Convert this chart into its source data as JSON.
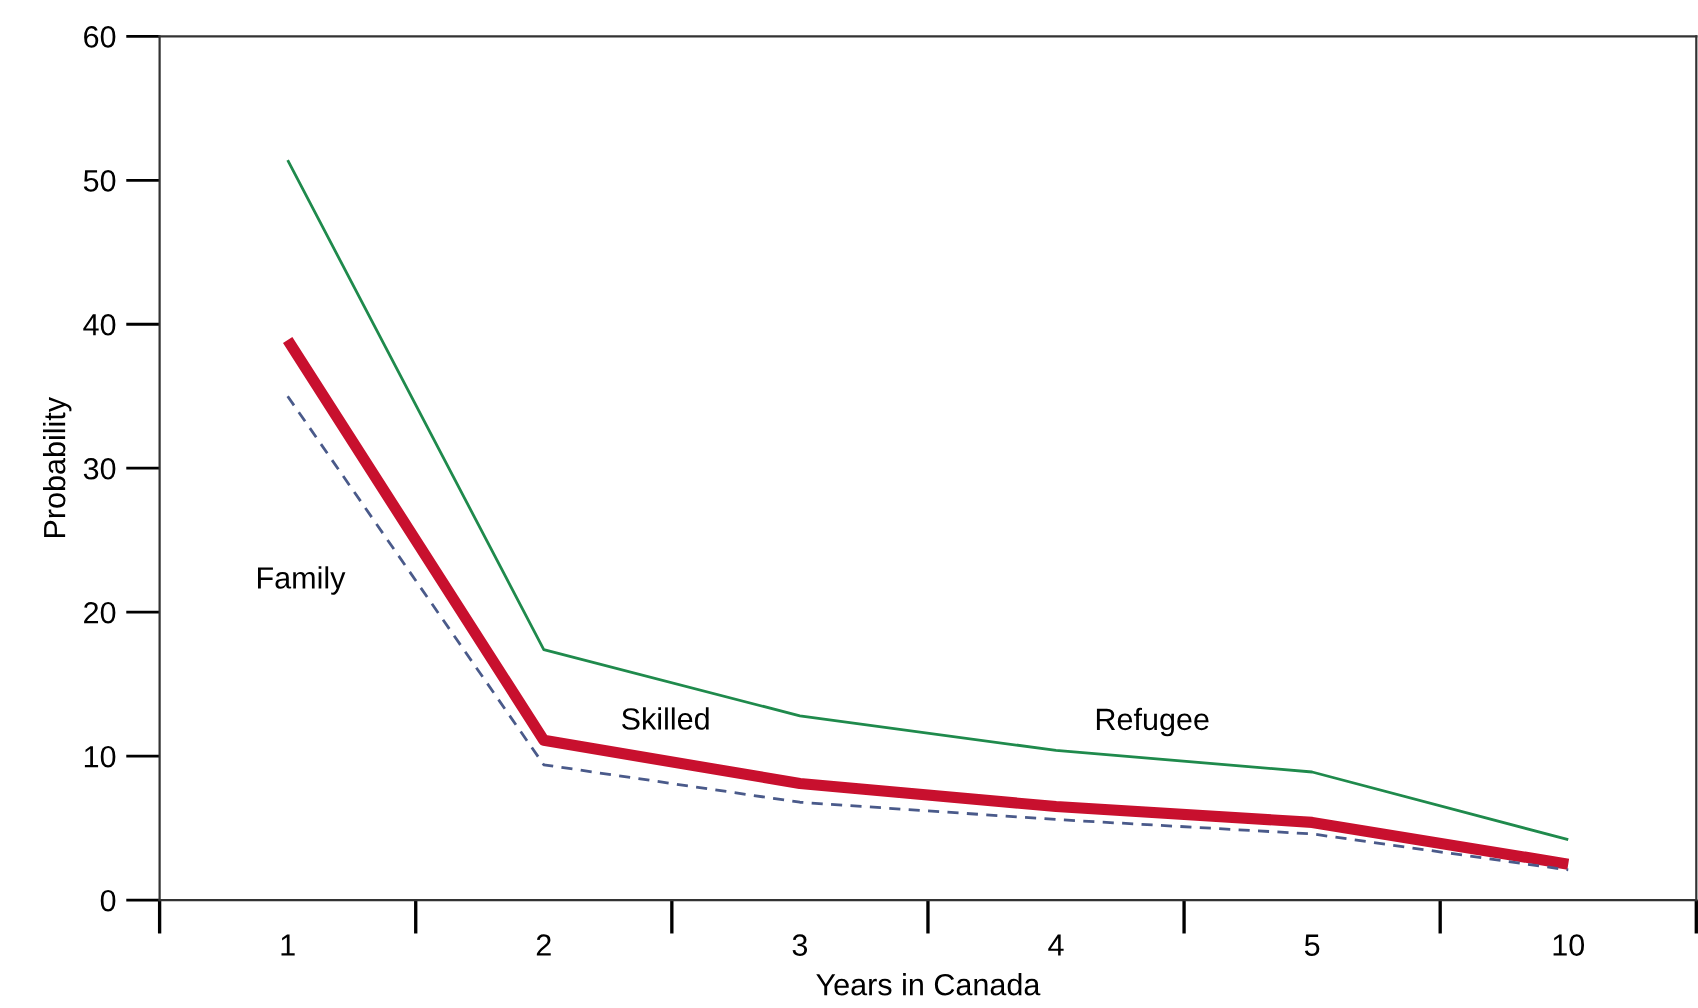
{
  "chart_data": {
    "type": "line",
    "xlabel": "Years in Canada",
    "ylabel": "Probability",
    "categories": [
      "1",
      "2",
      "3",
      "4",
      "5",
      "10"
    ],
    "series": [
      {
        "name": "Refugee",
        "color": "#1f8a4c",
        "line_style": "solid",
        "values": [
          51.4,
          17.4,
          12.8,
          10.4,
          8.9,
          4.2
        ]
      },
      {
        "name": "Skilled",
        "color": "#c8102e",
        "line_style": "solid",
        "values": [
          38.9,
          11.1,
          8.1,
          6.5,
          5.4,
          2.5
        ]
      },
      {
        "name": "Family",
        "color": "#4a5a8a",
        "line_style": "dashed",
        "values": [
          35.0,
          9.4,
          6.8,
          5.6,
          4.6,
          2.1
        ]
      }
    ],
    "ylim": [
      0,
      60
    ],
    "yticks": [
      0,
      10,
      20,
      30,
      40,
      50,
      60
    ],
    "grid": false,
    "legend": false,
    "marker": "none"
  }
}
